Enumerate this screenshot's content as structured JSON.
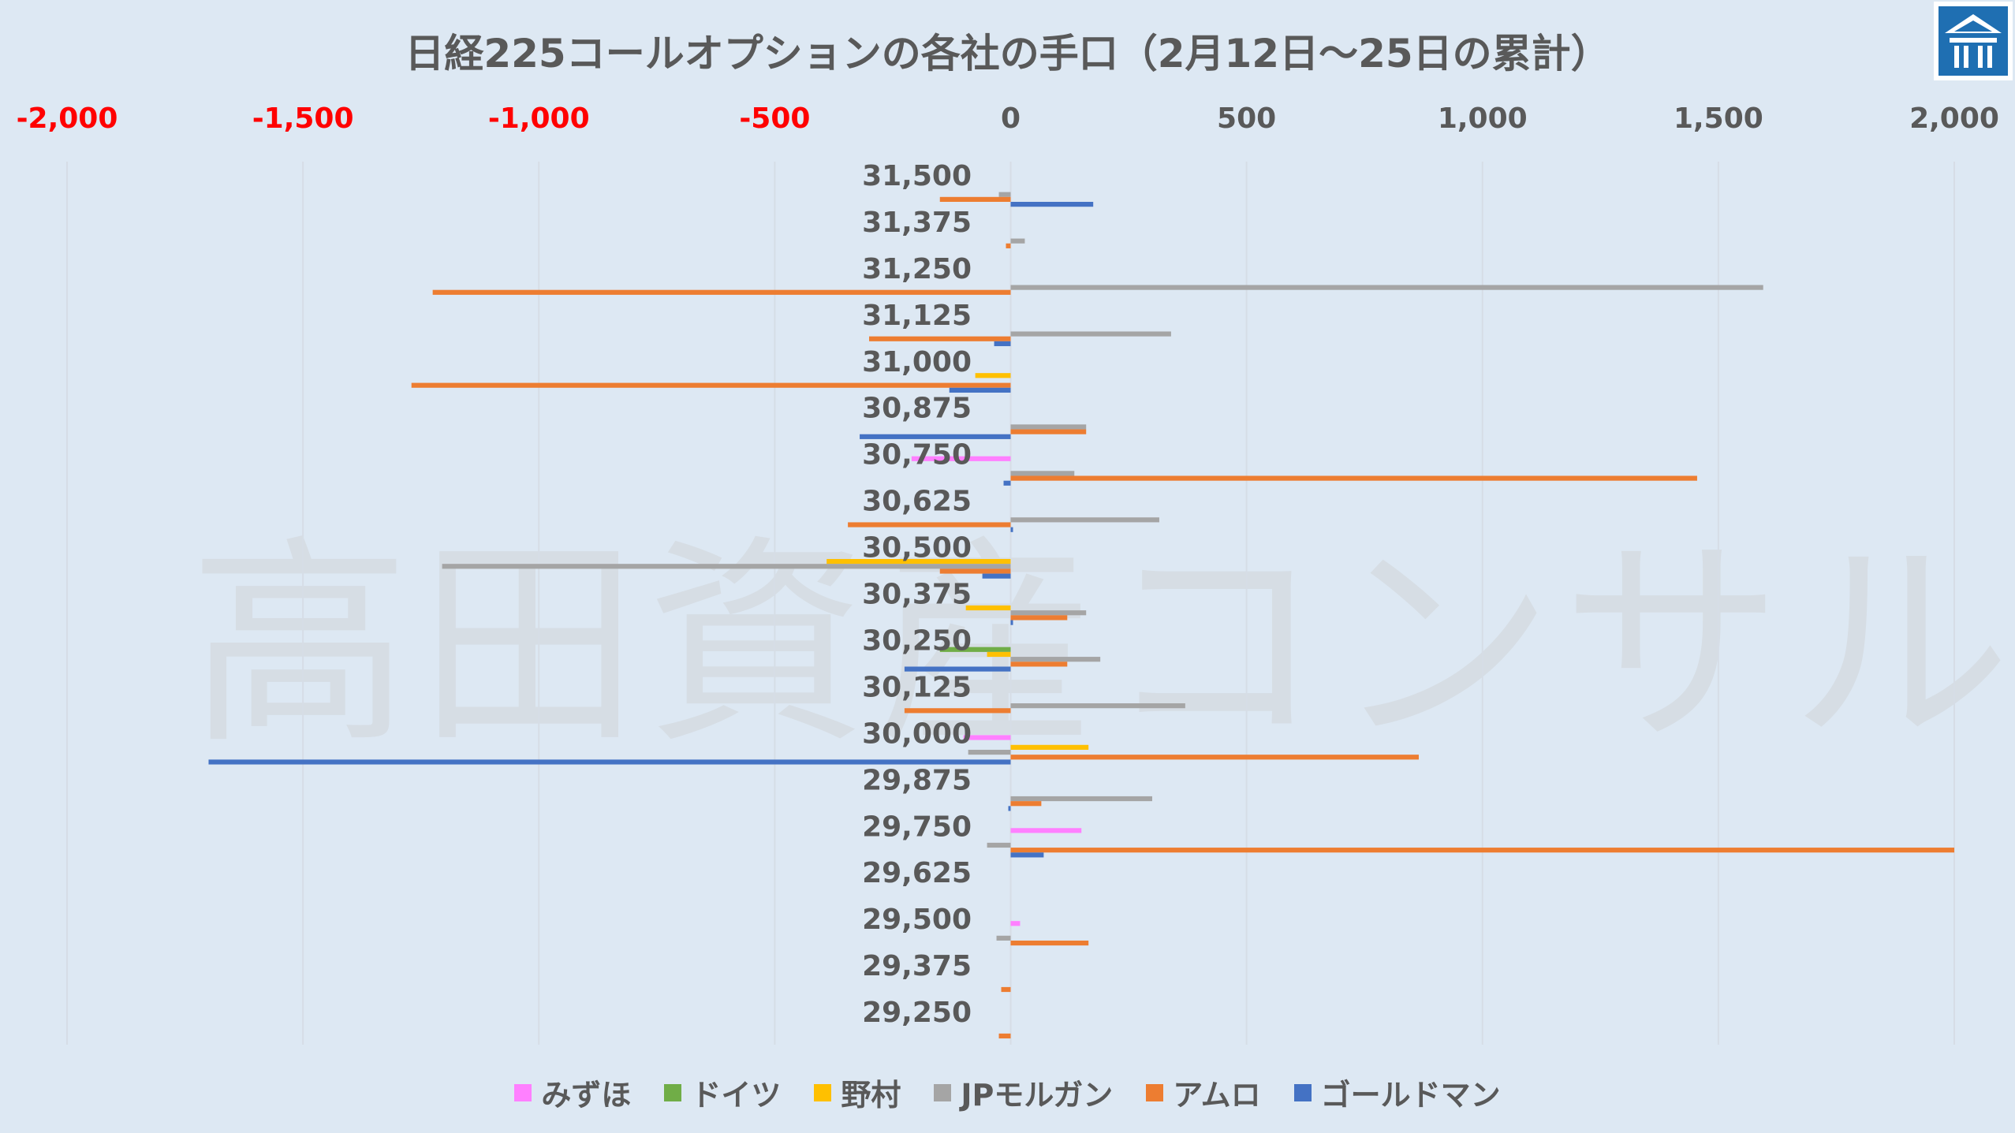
{
  "chart_data": {
    "type": "bar",
    "orientation": "horizontal",
    "title": "日経225コールオプションの各社の手口（2月12日～25日の累計）",
    "xlim": [
      -2000,
      2000
    ],
    "xticks": [
      {
        "label": "-2,000",
        "value": -2000
      },
      {
        "label": "-1,500",
        "value": -1500
      },
      {
        "label": "-1,000",
        "value": -1000
      },
      {
        "label": "-500",
        "value": -500
      },
      {
        "label": "0",
        "value": 0
      },
      {
        "label": "500",
        "value": 500
      },
      {
        "label": "1,000",
        "value": 1000
      },
      {
        "label": "1,500",
        "value": 1500
      },
      {
        "label": "2,000",
        "value": 2000
      }
    ],
    "negative_tick_color": "#ff0000",
    "positive_tick_color": "#595959",
    "grid": "vertical",
    "legend_position": "bottom",
    "categories": [
      "31,500",
      "31,375",
      "31,250",
      "31,125",
      "31,000",
      "30,875",
      "30,750",
      "30,625",
      "30,500",
      "30,375",
      "30,250",
      "30,125",
      "30,000",
      "29,875",
      "29,750",
      "29,625",
      "29,500",
      "29,375",
      "29,250"
    ],
    "series": [
      {
        "name": "みずほ",
        "color": "#ff80ff",
        "values": [
          0,
          0,
          0,
          0,
          0,
          0,
          -210,
          0,
          0,
          0,
          0,
          0,
          -100,
          0,
          150,
          0,
          20,
          0,
          0
        ]
      },
      {
        "name": "ドイツ",
        "color": "#70ad47",
        "values": [
          0,
          0,
          0,
          0,
          0,
          0,
          0,
          0,
          0,
          0,
          -150,
          0,
          0,
          0,
          0,
          0,
          0,
          0,
          0
        ]
      },
      {
        "name": "野村",
        "color": "#ffc000",
        "values": [
          0,
          0,
          0,
          0,
          -75,
          0,
          0,
          0,
          -390,
          -95,
          -50,
          0,
          165,
          0,
          0,
          0,
          0,
          0,
          0
        ]
      },
      {
        "name": "JPモルガン",
        "color": "#a5a5a5",
        "values": [
          -25,
          30,
          1595,
          340,
          0,
          160,
          135,
          315,
          -1205,
          160,
          190,
          370,
          -90,
          300,
          -50,
          0,
          -30,
          0,
          0
        ]
      },
      {
        "name": "アムロ",
        "color": "#ed7d31",
        "values": [
          -150,
          -10,
          -1225,
          -300,
          -1270,
          160,
          1455,
          -345,
          -150,
          120,
          120,
          -225,
          865,
          65,
          2000,
          0,
          165,
          -20,
          -25
        ]
      },
      {
        "name": "ゴールドマン",
        "color": "#4472c4",
        "values": [
          175,
          0,
          0,
          -35,
          -130,
          -320,
          -15,
          5,
          -60,
          5,
          -225,
          0,
          -1700,
          -5,
          70,
          0,
          0,
          0,
          0
        ]
      }
    ]
  },
  "legend_items": [
    "みずほ",
    "ドイツ",
    "野村",
    "JPモルガン",
    "アムロ",
    "ゴールドマン"
  ],
  "watermark": "高田資産コンサル",
  "logo_icon": "takada-logo-icon"
}
